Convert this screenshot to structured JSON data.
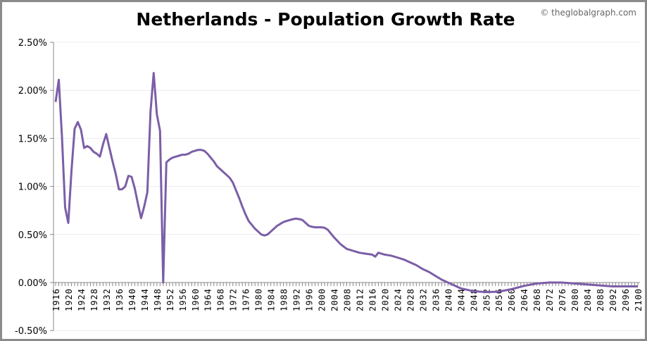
{
  "title": "Netherlands - Population Growth Rate",
  "watermark": "© theglobalgraph.com",
  "chart_data": {
    "type": "line",
    "title": "Netherlands - Population Growth Rate",
    "xlabel": "",
    "ylabel": "",
    "xlim": [
      1916,
      2100
    ],
    "ylim": [
      -0.5,
      2.5
    ],
    "yticks": [
      "-0.50%",
      "0.00%",
      "0.50%",
      "1.00%",
      "1.50%",
      "2.00%",
      "2.50%"
    ],
    "ytick_values": [
      -0.5,
      0,
      0.5,
      1,
      1.5,
      2,
      2.5
    ],
    "xtick_step": 4,
    "grid": "horizontal",
    "color": "#7b5ea7",
    "series": [
      {
        "x": [
          1916,
          1917,
          1918,
          1919,
          1920,
          1921,
          1922,
          1923,
          1924,
          1925,
          1926,
          1927,
          1928,
          1929,
          1930,
          1931,
          1932,
          1933,
          1934,
          1935,
          1936,
          1937,
          1938,
          1939,
          1940,
          1941,
          1942,
          1943,
          1944,
          1945,
          1946,
          1947,
          1948,
          1949,
          1950,
          1951,
          1952,
          1953,
          1954,
          1955,
          1956,
          1957,
          1958,
          1959,
          1960,
          1961,
          1962,
          1963,
          1964,
          1965,
          1966,
          1967,
          1968,
          1969,
          1970,
          1971,
          1972,
          1973,
          1974,
          1975,
          1976,
          1977,
          1978,
          1979,
          1980,
          1981,
          1982,
          1983,
          1984,
          1985,
          1986,
          1987,
          1988,
          1989,
          1990,
          1991,
          1992,
          1993,
          1994,
          1995,
          1996,
          1997,
          1998,
          1999,
          2000,
          2001,
          2002,
          2003,
          2004,
          2006,
          2008,
          2010,
          2012,
          2014,
          2016,
          2017,
          2018,
          2020,
          2022,
          2024,
          2026,
          2028,
          2030,
          2032,
          2034,
          2036,
          2038,
          2040,
          2042,
          2044,
          2048,
          2052,
          2056,
          2060,
          2064,
          2068,
          2072,
          2076,
          2080,
          2084,
          2088,
          2092,
          2096,
          2100
        ],
        "y": [
          1.88,
          2.11,
          1.52,
          0.78,
          0.62,
          1.16,
          1.6,
          1.67,
          1.59,
          1.4,
          1.42,
          1.4,
          1.36,
          1.34,
          1.31,
          1.44,
          1.545,
          1.4,
          1.26,
          1.13,
          0.97,
          0.97,
          1.0,
          1.11,
          1.1,
          0.98,
          0.82,
          0.67,
          0.79,
          0.94,
          1.78,
          2.18,
          1.75,
          1.58,
          0.0,
          1.25,
          1.28,
          1.3,
          1.31,
          1.32,
          1.33,
          1.33,
          1.34,
          1.36,
          1.37,
          1.38,
          1.38,
          1.37,
          1.34,
          1.3,
          1.26,
          1.21,
          1.18,
          1.15,
          1.12,
          1.09,
          1.04,
          0.96,
          0.88,
          0.79,
          0.71,
          0.64,
          0.6,
          0.56,
          0.53,
          0.5,
          0.49,
          0.5,
          0.53,
          0.56,
          0.59,
          0.61,
          0.63,
          0.64,
          0.65,
          0.66,
          0.665,
          0.66,
          0.65,
          0.62,
          0.59,
          0.58,
          0.575,
          0.575,
          0.575,
          0.57,
          0.55,
          0.51,
          0.47,
          0.4,
          0.35,
          0.33,
          0.31,
          0.3,
          0.29,
          0.27,
          0.31,
          0.29,
          0.28,
          0.26,
          0.24,
          0.21,
          0.18,
          0.14,
          0.11,
          0.07,
          0.03,
          0.0,
          -0.03,
          -0.06,
          -0.09,
          -0.1,
          -0.095,
          -0.07,
          -0.035,
          -0.01,
          0.0,
          0.0,
          -0.01,
          -0.02,
          -0.03,
          -0.04,
          -0.04,
          -0.04
        ]
      }
    ]
  }
}
